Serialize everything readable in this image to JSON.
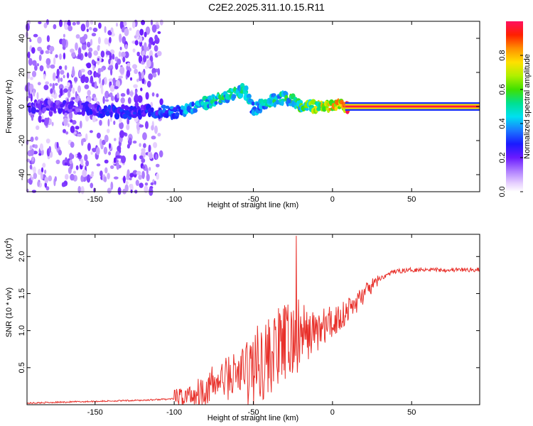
{
  "title": "C2E2.2025.311.10.15.R11",
  "colors": {
    "snr_line": "#e8302a",
    "spectrum_bg": "#ffffff",
    "axis": "#000000"
  },
  "chart_data": [
    {
      "type": "heatmap",
      "name": "spectrogram",
      "xlabel": "Height of straight line (km)",
      "ylabel": "Frequency (Hz)",
      "xlim": [
        -193,
        93
      ],
      "ylim": [
        -50,
        50
      ],
      "xticks": [
        -150,
        -100,
        -50,
        0,
        50
      ],
      "xtick_labels": [
        "-150",
        "-100",
        "-50",
        "0",
        "50"
      ],
      "yticks": [
        -40,
        -20,
        0,
        20,
        40
      ],
      "ytick_labels": [
        "-40",
        "-20",
        "0",
        "20",
        "40"
      ],
      "colorbar": {
        "label": "Normalized spectral amplitude",
        "range": [
          0,
          1
        ],
        "ticks": [
          0.0,
          0.2,
          0.4,
          0.6,
          0.8
        ],
        "tick_labels": [
          "0.0",
          "0.2",
          "0.4",
          "0.6",
          "0.8"
        ],
        "colormap": "rainbow"
      },
      "ridge": {
        "x": [
          -180,
          -160,
          -140,
          -120,
          -100,
          -90,
          -80,
          -70,
          -60,
          -55,
          -50,
          -40,
          -30,
          -20,
          -10,
          0,
          10,
          20,
          50,
          93
        ],
        "freq": [
          0,
          -1,
          -3,
          -3,
          -3,
          -1,
          2,
          5,
          9,
          10,
          -2,
          3,
          5,
          1,
          0,
          0,
          0,
          0,
          0,
          0
        ],
        "amplitude": [
          0.25,
          0.25,
          0.35,
          0.3,
          0.4,
          0.5,
          0.55,
          0.6,
          0.6,
          0.55,
          0.45,
          0.55,
          0.6,
          0.65,
          0.8,
          0.9,
          1.0,
          1.0,
          1.0,
          1.0
        ]
      }
    },
    {
      "type": "line",
      "name": "snr",
      "xlabel": "Height of straight line (km)",
      "ylabel": "SNR (10 * v/v)",
      "multiplier_label": "(x10",
      "multiplier_exp": "4",
      "multiplier_close": ")",
      "xlim": [
        -193,
        93
      ],
      "ylim": [
        0,
        2.3
      ],
      "xticks": [
        -150,
        -100,
        -50,
        0,
        50
      ],
      "xtick_labels": [
        "-150",
        "-100",
        "-50",
        "0",
        "50"
      ],
      "yticks": [
        0.5,
        1.0,
        1.5,
        2.0
      ],
      "ytick_labels": [
        "0.5",
        "1.0",
        "1.5",
        "2.0"
      ],
      "series": [
        {
          "name": "SNR",
          "x": [
            -193,
            -180,
            -160,
            -140,
            -120,
            -110,
            -100,
            -95,
            -90,
            -85,
            -80,
            -75,
            -70,
            -65,
            -60,
            -55,
            -50,
            -45,
            -40,
            -35,
            -30,
            -25,
            -20,
            -15,
            -10,
            -5,
            0,
            5,
            10,
            15,
            20,
            25,
            30,
            35,
            40,
            50,
            60,
            70,
            80,
            93
          ],
          "y": [
            0.02,
            0.03,
            0.04,
            0.05,
            0.06,
            0.07,
            0.08,
            0.1,
            0.13,
            0.17,
            0.22,
            0.28,
            0.33,
            0.38,
            0.42,
            0.45,
            0.5,
            0.6,
            0.65,
            0.75,
            0.82,
            0.85,
            0.88,
            0.95,
            1.0,
            1.05,
            1.1,
            1.2,
            1.28,
            1.38,
            1.5,
            1.6,
            1.7,
            1.76,
            1.8,
            1.82,
            1.83,
            1.82,
            1.82,
            1.82
          ]
        }
      ],
      "spike": {
        "x": -23,
        "y": 2.28
      }
    }
  ]
}
